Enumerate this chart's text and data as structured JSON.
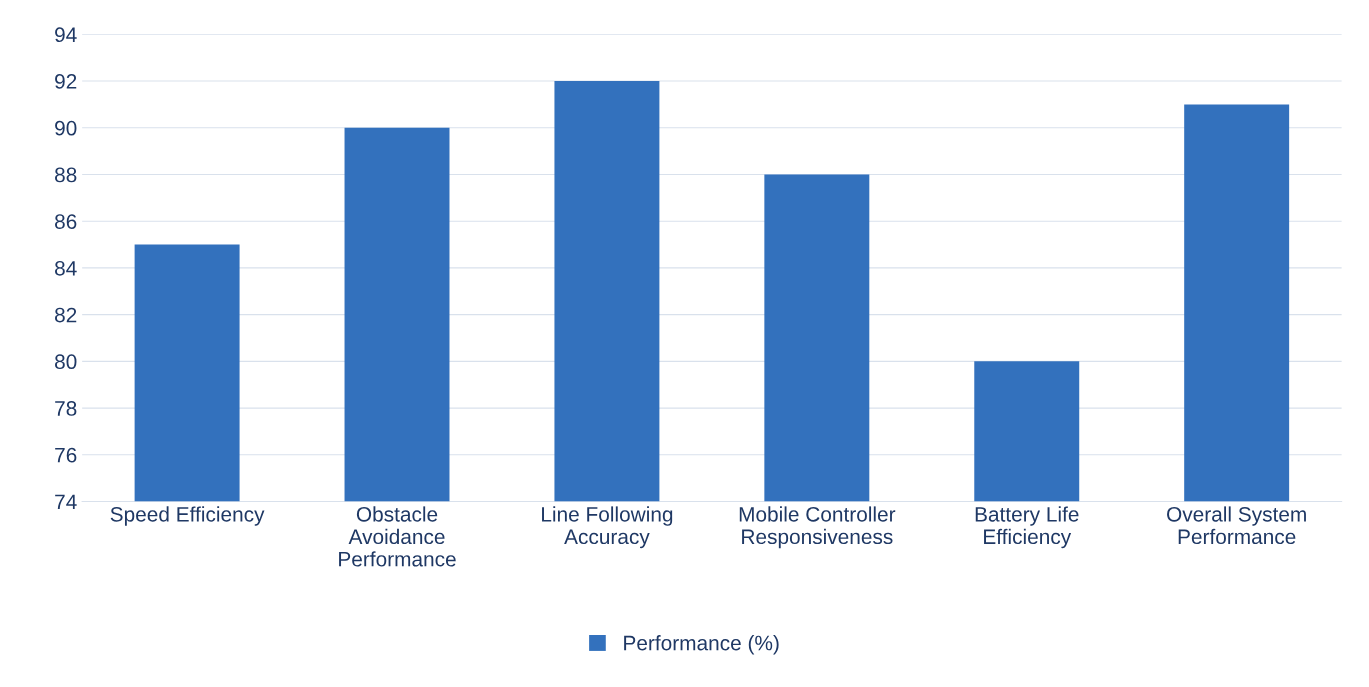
{
  "chart_data": {
    "type": "bar",
    "categories": [
      "Speed Efficiency",
      "Obstacle\nAvoidance\nPerformance",
      "Line Following\nAccuracy",
      "Mobile Controller\nResponsiveness",
      "Battery Life\nEfficiency",
      "Overall System\nPerformance"
    ],
    "series": [
      {
        "name": "Performance (%)",
        "color": "#3371bd",
        "values": [
          85,
          90,
          92,
          88,
          80,
          91
        ]
      }
    ],
    "ylim": [
      74,
      94
    ],
    "yticks": [
      74,
      76,
      78,
      80,
      82,
      84,
      86,
      88,
      90,
      92,
      94
    ],
    "grid": "y",
    "legend": "bottom"
  }
}
